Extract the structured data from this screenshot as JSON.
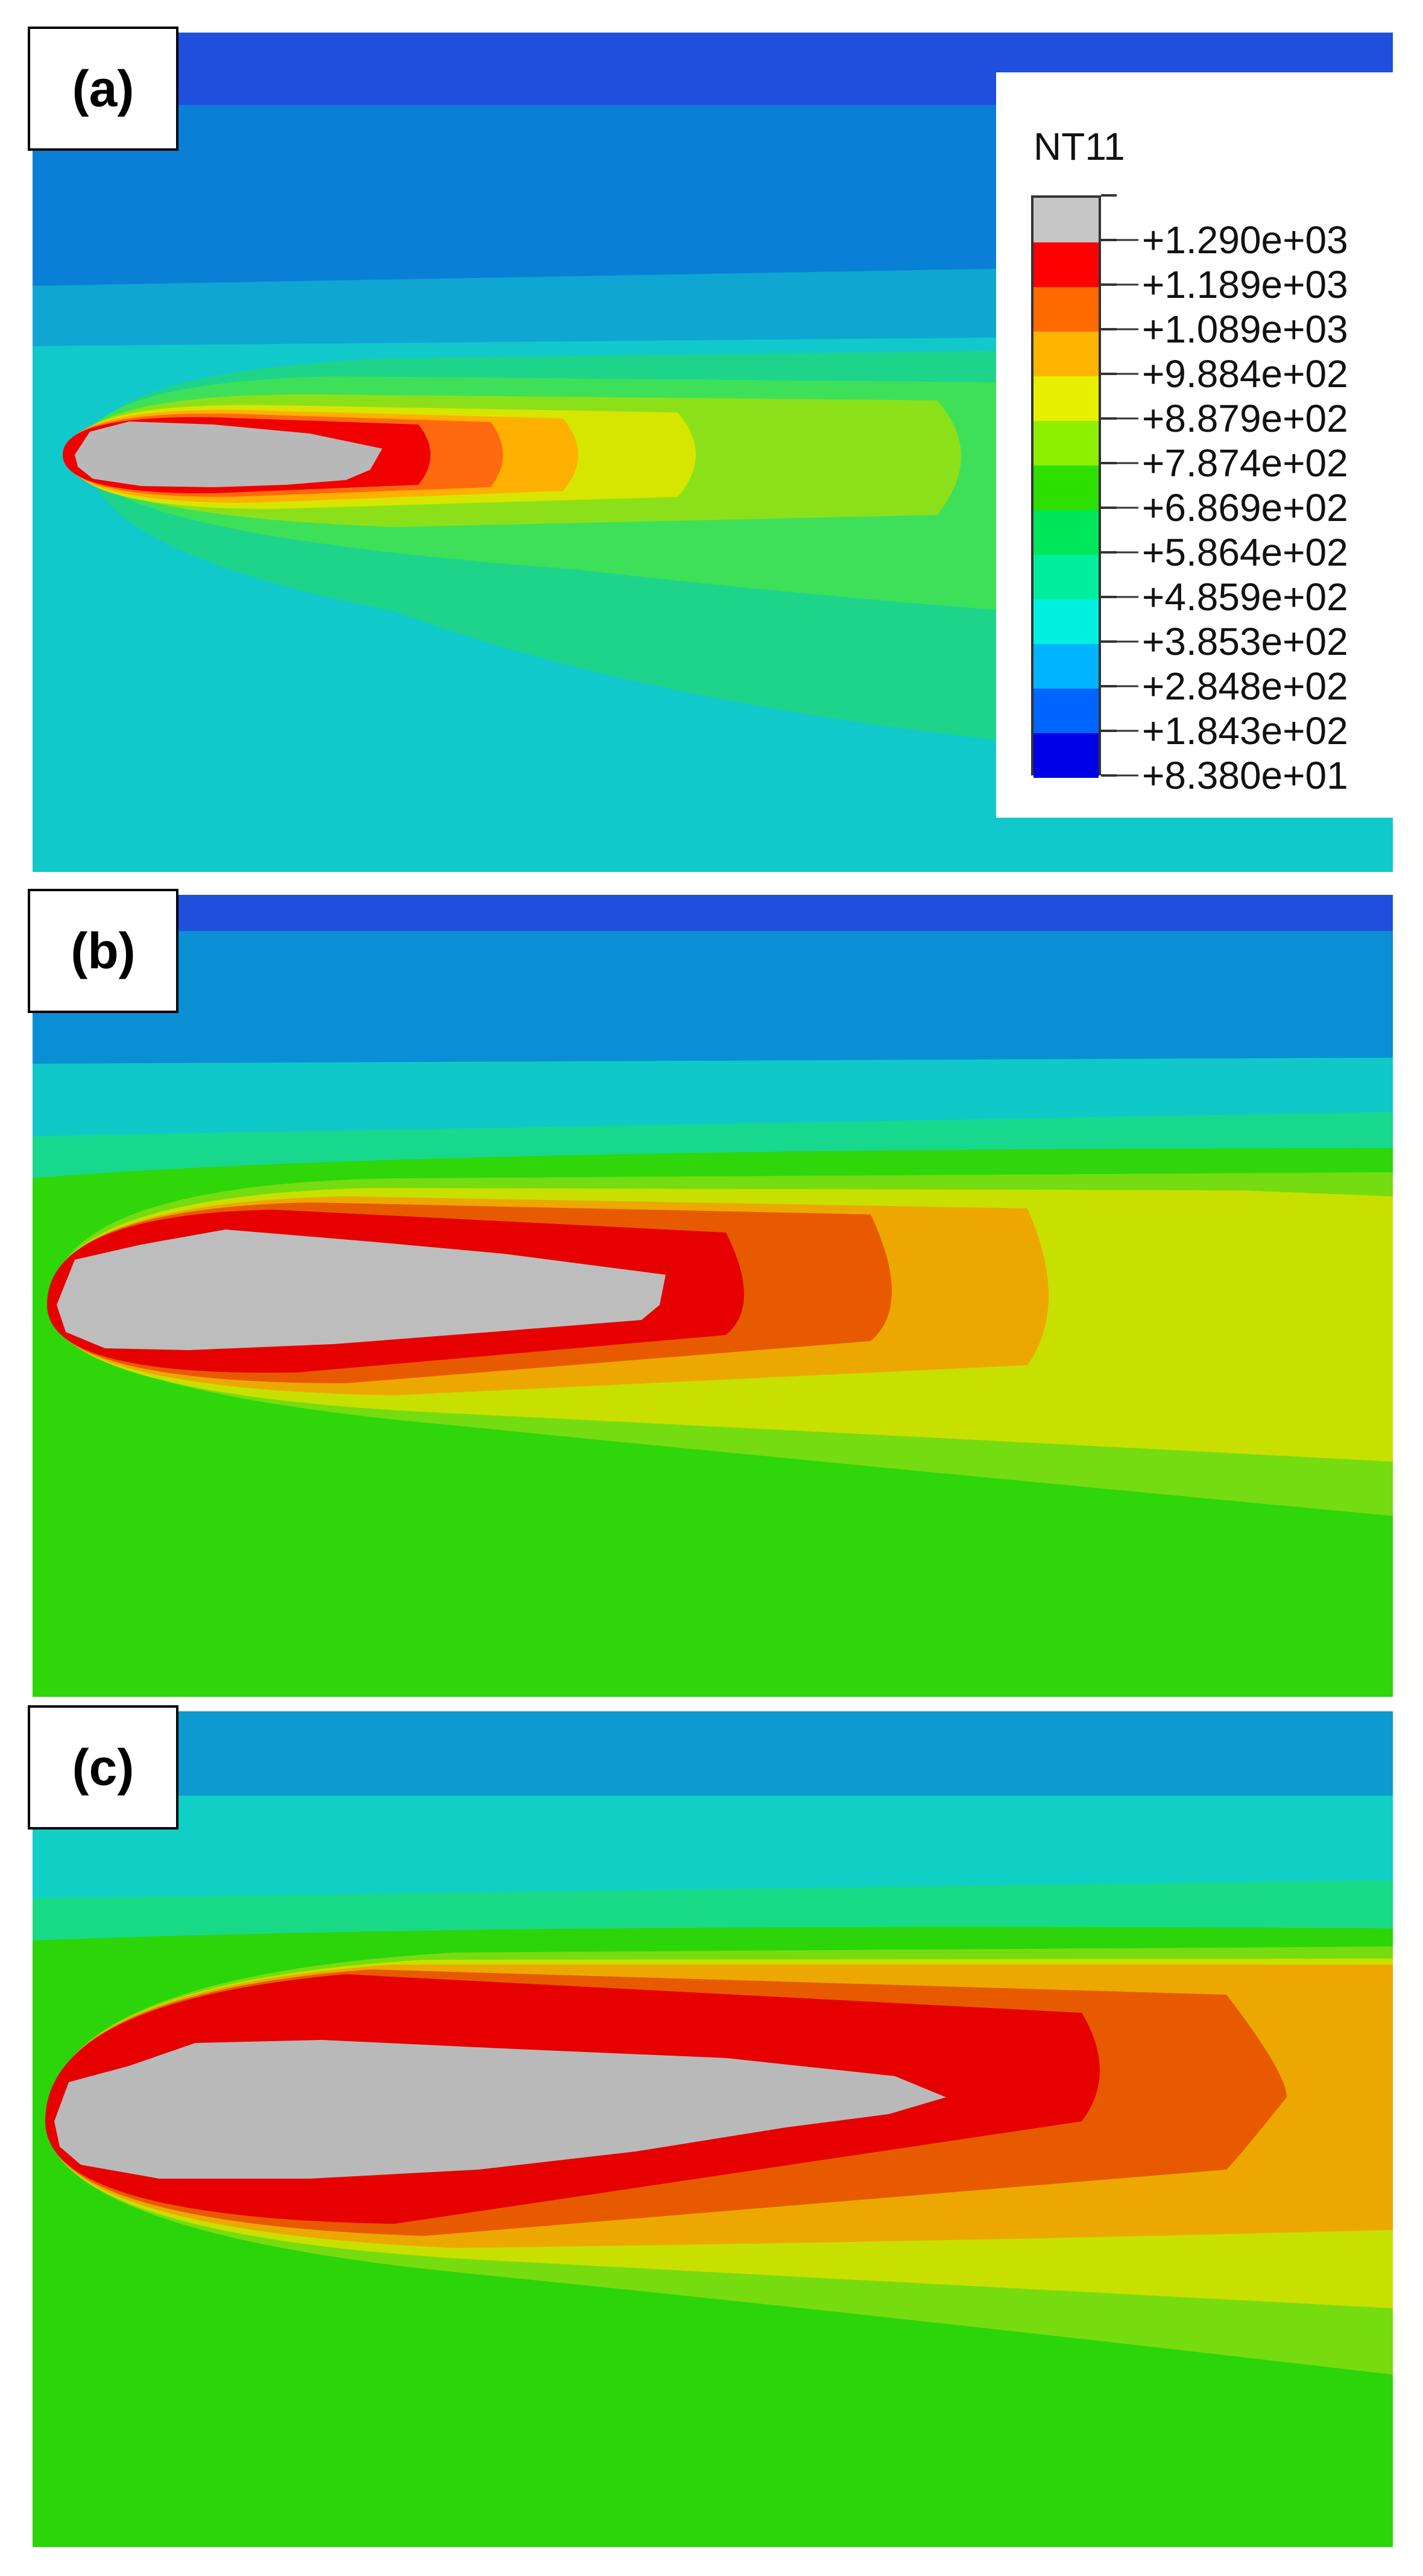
{
  "panels": [
    {
      "label": "(a)"
    },
    {
      "label": "(b)"
    },
    {
      "label": "(c)"
    }
  ],
  "legend": {
    "title": "NT11",
    "levels": [
      {
        "value": "+1.290e+03",
        "color": "#c6c6c6"
      },
      {
        "value": "+1.189e+03",
        "color": "#ff0000"
      },
      {
        "value": "+1.089e+03",
        "color": "#ff6a00"
      },
      {
        "value": "+9.884e+02",
        "color": "#ffb400"
      },
      {
        "value": "+8.879e+02",
        "color": "#e6f000"
      },
      {
        "value": "+7.874e+02",
        "color": "#8cf000"
      },
      {
        "value": "+6.869e+02",
        "color": "#2ee000"
      },
      {
        "value": "+5.864e+02",
        "color": "#00e65a"
      },
      {
        "value": "+4.859e+02",
        "color": "#00ee9e"
      },
      {
        "value": "+3.853e+02",
        "color": "#00f0e0"
      },
      {
        "value": "+2.848e+02",
        "color": "#00b4ff"
      },
      {
        "value": "+1.843e+02",
        "color": "#0064ff"
      },
      {
        "value": "+8.380e+01",
        "color": "#0000e6"
      }
    ]
  }
}
